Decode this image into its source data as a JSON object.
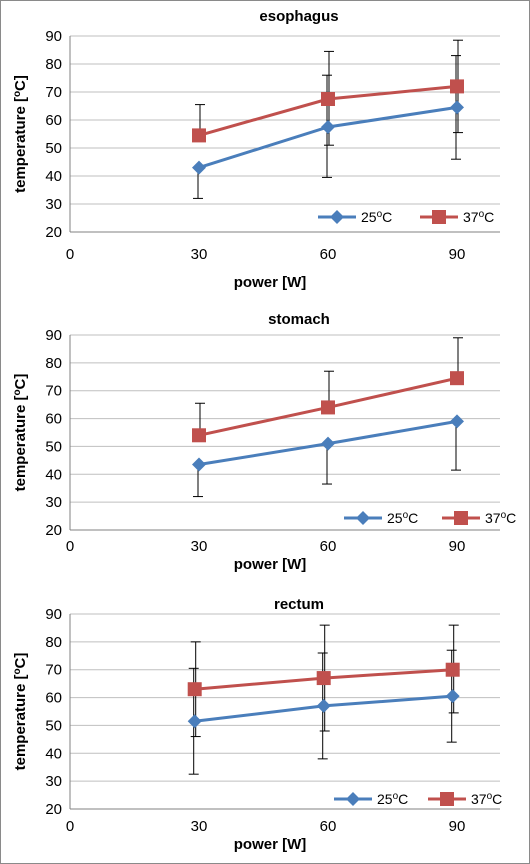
{
  "colors": {
    "series_25": "#4a7ebb",
    "series_37": "#c0504d",
    "grid": "#bfbfbf",
    "axis": "#808080",
    "error_bar": "#000000"
  },
  "chart_data": [
    {
      "type": "line",
      "title": "esophagus",
      "xlabel": "power [W]",
      "ylabel": "temperature [°C]",
      "x_ticks": [
        "0",
        "30",
        "60",
        "90"
      ],
      "y_ticks": [
        "20",
        "30",
        "40",
        "50",
        "60",
        "70",
        "80",
        "90"
      ],
      "xlim": [
        0,
        100
      ],
      "ylim": [
        20,
        90
      ],
      "grid": true,
      "legend_position": "bottom-right",
      "x": [
        30,
        60,
        90
      ],
      "series": [
        {
          "name": "25",
          "name_sup": "o",
          "name_suffix": "C",
          "marker": "diamond",
          "values": [
            43,
            57.5,
            64.5
          ],
          "err_low": [
            32,
            39.5,
            46
          ],
          "err_high": [
            null,
            76,
            83
          ]
        },
        {
          "name": "37",
          "name_sup": "o",
          "name_suffix": "C",
          "marker": "square",
          "values": [
            54.5,
            67.5,
            72
          ],
          "err_low": [
            null,
            51,
            55.5
          ],
          "err_high": [
            65.5,
            84.5,
            88.5
          ]
        }
      ]
    },
    {
      "type": "line",
      "title": "stomach",
      "xlabel": "power [W]",
      "ylabel": "temperature [°C]",
      "x_ticks": [
        "0",
        "30",
        "60",
        "90"
      ],
      "y_ticks": [
        "20",
        "30",
        "40",
        "50",
        "60",
        "70",
        "80",
        "90"
      ],
      "xlim": [
        0,
        100
      ],
      "ylim": [
        20,
        90
      ],
      "grid": true,
      "legend_position": "bottom-right",
      "x": [
        30,
        60,
        90
      ],
      "series": [
        {
          "name": "25",
          "name_sup": "o",
          "name_suffix": "C",
          "marker": "diamond",
          "values": [
            43.5,
            51,
            59
          ],
          "err_low": [
            32,
            36.5,
            41.5
          ],
          "err_high": [
            null,
            null,
            null
          ]
        },
        {
          "name": "37",
          "name_sup": "o",
          "name_suffix": "C",
          "marker": "square",
          "values": [
            54,
            64,
            74.5
          ],
          "err_low": [
            null,
            null,
            null
          ],
          "err_high": [
            65.5,
            77,
            89
          ]
        }
      ]
    },
    {
      "type": "line",
      "title": "rectum",
      "xlabel": "power [W]",
      "ylabel": "temperature [°C]",
      "x_ticks": [
        "0",
        "30",
        "60",
        "90"
      ],
      "y_ticks": [
        "20",
        "30",
        "40",
        "50",
        "60",
        "70",
        "80",
        "90"
      ],
      "xlim": [
        0,
        100
      ],
      "ylim": [
        20,
        90
      ],
      "grid": true,
      "legend_position": "bottom-right",
      "x": [
        29,
        59,
        89
      ],
      "series": [
        {
          "name": "25",
          "name_sup": "o",
          "name_suffix": "C",
          "marker": "diamond",
          "values": [
            51.5,
            57,
            60.5
          ],
          "err_low": [
            32.5,
            38,
            44
          ],
          "err_high": [
            70.5,
            76,
            77
          ]
        },
        {
          "name": "37",
          "name_sup": "o",
          "name_suffix": "C",
          "marker": "square",
          "values": [
            63,
            67,
            70
          ],
          "err_low": [
            46,
            48,
            54.5
          ],
          "err_high": [
            80,
            86,
            86
          ]
        }
      ]
    }
  ]
}
